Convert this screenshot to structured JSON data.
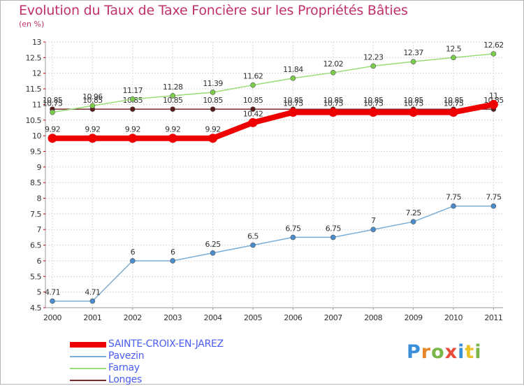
{
  "title": "Evolution du Taux de Taxe Foncière sur les Propriétés Bâties",
  "subtitle": "(en %)",
  "logo": {
    "text": [
      "P",
      "r",
      "o",
      "x",
      "i",
      "t",
      "i"
    ],
    "colors": [
      "#3a8fd9",
      "#e8862a",
      "#7ab648",
      "#e84a3a",
      "#3a8fd9",
      "#e8c42a",
      "#7ab648"
    ]
  },
  "chart_data": {
    "type": "line",
    "title": "Evolution du Taux de Taxe Foncière sur les Propriétés Bâties",
    "ylabel": "(en %)",
    "xlabel": "",
    "ylim": [
      4.5,
      13
    ],
    "yticks": [
      4.5,
      5,
      5.5,
      6,
      6.5,
      7,
      7.5,
      8,
      8.5,
      9,
      9.5,
      10,
      10.5,
      11,
      11.5,
      12,
      12.5,
      13
    ],
    "categories": [
      "2000",
      "2001",
      "2002",
      "2003",
      "2004",
      "2005",
      "2006",
      "2007",
      "2008",
      "2009",
      "2010",
      "2011"
    ],
    "series": [
      {
        "name": "Longes",
        "color": "#7a2a2a",
        "dot": "#5a1a1a",
        "width": 1.5,
        "r": 3.5,
        "values": [
          10.85,
          10.85,
          10.85,
          10.85,
          10.85,
          10.85,
          10.85,
          10.85,
          10.85,
          10.85,
          10.85,
          10.85
        ],
        "labels": [
          "10.85",
          "10.85",
          "10.85",
          "10.85",
          "10.85",
          "10.85",
          "10.85",
          "10.85",
          "10.85",
          "10.85",
          "10.85",
          "10.85"
        ]
      },
      {
        "name": "Farnay",
        "color": "#99dd77",
        "dot": "#7ccc4c",
        "width": 1.5,
        "r": 3.5,
        "values": [
          10.75,
          10.96,
          11.17,
          11.28,
          11.39,
          11.62,
          11.84,
          12.02,
          12.23,
          12.37,
          12.5,
          12.62
        ],
        "labels": [
          "10.75",
          "10.96",
          "11.17",
          "11.28",
          "11.39",
          "11.62",
          "11.84",
          "12.02",
          "12.23",
          "12.37",
          "12.5",
          "12.62"
        ]
      },
      {
        "name": "Pavezin",
        "color": "#7aaed6",
        "dot": "#4a8ccc",
        "width": 1.5,
        "r": 3.5,
        "values": [
          4.71,
          4.71,
          6,
          6,
          6.25,
          6.5,
          6.75,
          6.75,
          7,
          7.25,
          7.75,
          7.75
        ],
        "labels": [
          "4.71",
          "4.71",
          "6",
          "6",
          "6.25",
          "6.5",
          "6.75",
          "6.75",
          "7",
          "7.25",
          "7.75",
          "7.75"
        ]
      },
      {
        "name": "SAINTE-CROIX-EN-JAREZ",
        "color": "#ee0000",
        "dot": "#ee0000",
        "width": 8,
        "r": 6.5,
        "values": [
          9.92,
          9.92,
          9.92,
          9.92,
          9.92,
          10.42,
          10.75,
          10.75,
          10.75,
          10.75,
          10.75,
          11
        ],
        "labels": [
          "9.92",
          "9.92",
          "9.92",
          "9.92",
          "9.92",
          "10.42",
          "10.75",
          "10.75",
          "10.75",
          "10.75",
          "10.75",
          "11"
        ]
      }
    ],
    "legend": [
      "SAINTE-CROIX-EN-JAREZ",
      "Pavezin",
      "Farnay",
      "Longes"
    ],
    "legend_position": "bottom-left"
  }
}
